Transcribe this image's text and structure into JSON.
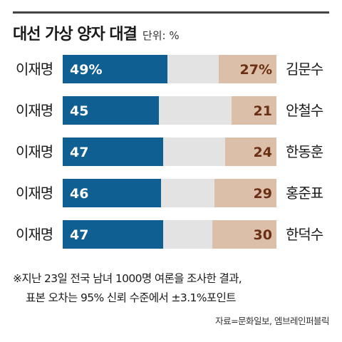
{
  "title": "대선 가상 양자 대결",
  "unit_label": "단위: %",
  "colors": {
    "left": "#0f5f93",
    "middle": "#e3e3e3",
    "right": "#dcbfa8",
    "right_text": "#6b2f14"
  },
  "chart_data": {
    "type": "bar",
    "stacked": true,
    "orientation": "horizontal",
    "xlim": [
      0,
      100
    ],
    "rows": [
      {
        "left_name": "이재명",
        "left_value": 49,
        "left_label": "49%",
        "right_name": "김문수",
        "right_value": 27,
        "right_label": "27%"
      },
      {
        "left_name": "이재명",
        "left_value": 45,
        "left_label": "45",
        "right_name": "안철수",
        "right_value": 21,
        "right_label": "21"
      },
      {
        "left_name": "이재명",
        "left_value": 47,
        "left_label": "47",
        "right_name": "한동훈",
        "right_value": 24,
        "right_label": "24"
      },
      {
        "left_name": "이재명",
        "left_value": 46,
        "left_label": "46",
        "right_name": "홍준표",
        "right_value": 29,
        "right_label": "29"
      },
      {
        "left_name": "이재명",
        "left_value": 47,
        "left_label": "47",
        "right_name": "한덕수",
        "right_value": 30,
        "right_label": "30"
      }
    ]
  },
  "note": {
    "line1": "※지난 23일 전국 남녀 1000명 여론을 조사한 결과,",
    "line2": "표본 오차는 95% 신뢰 수준에서 ±3.1%포인트"
  },
  "source": "자료=문화일보, 엠브레인퍼블릭"
}
